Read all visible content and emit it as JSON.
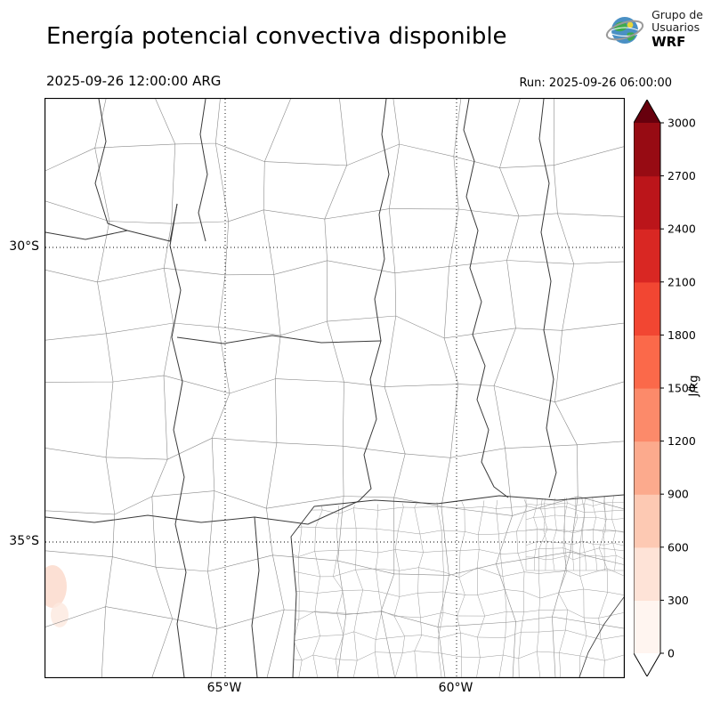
{
  "header": {
    "title": "Energía potencial convectiva disponible",
    "valid_time": "2025-09-26 12:00:00 ARG",
    "run_label": "Run: 2025-09-26 06:00:00",
    "logo": {
      "org_line1": "Grupo de",
      "org_line2": "Usuarios",
      "acronym": "WRF"
    }
  },
  "map": {
    "y_tick_labels": [
      "30°S",
      "35°S"
    ],
    "x_tick_labels": [
      "65°W",
      "60°W"
    ],
    "land_color": "#ffffff",
    "department_boundary_color": "#8a8a8a",
    "province_boundary_color": "#3a3a3a",
    "gridline_color": "#000000"
  },
  "colorbar": {
    "unit_label": "J/kg",
    "tick_labels": [
      "0",
      "300",
      "600",
      "900",
      "1200",
      "1500",
      "1800",
      "2100",
      "2400",
      "2700",
      "3000"
    ],
    "segment_colors_bottom_to_top": [
      "#fff5f0",
      "#fee3d7",
      "#fdc9b3",
      "#fcaa8d",
      "#fc8a6a",
      "#fb694a",
      "#f24632",
      "#d92723",
      "#bb151a",
      "#970b13"
    ],
    "over_arrow_color": "#67000d",
    "under_arrow_color": "#ffffff"
  }
}
